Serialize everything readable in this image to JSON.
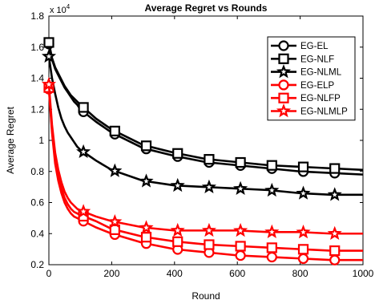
{
  "chart_data": {
    "type": "line",
    "title": "Average Regret vs Rounds",
    "xlabel": "Round",
    "ylabel": "Average Regret",
    "y_multiplier_label": "x 10",
    "y_multiplier_exp": "4",
    "xlim": [
      0,
      1000
    ],
    "ylim": [
      0.2,
      1.8
    ],
    "xticks": [
      0,
      200,
      400,
      600,
      800,
      1000
    ],
    "yticks": [
      0.2,
      0.4,
      0.6,
      0.8,
      1,
      1.2,
      1.4,
      1.6,
      1.8
    ],
    "xtick_labels": [
      "0",
      "200",
      "400",
      "600",
      "800",
      "1000"
    ],
    "ytick_labels": [
      "0.2",
      "0.4",
      "0.6",
      "0.8",
      "1",
      "1.2",
      "1.4",
      "1.6",
      "1.8"
    ],
    "grid": false,
    "legend_position": "top-right",
    "x": [
      0,
      10,
      20,
      30,
      40,
      50,
      60,
      70,
      80,
      90,
      100,
      150,
      200,
      300,
      400,
      500,
      600,
      700,
      800,
      900,
      1000
    ],
    "marker_x": [
      0,
      110,
      210,
      310,
      410,
      510,
      610,
      710,
      810,
      910
    ],
    "series": [
      {
        "name": "EG-EL",
        "color": "#000000",
        "marker": "circle",
        "values": [
          1.62,
          1.52,
          1.46,
          1.42,
          1.38,
          1.34,
          1.31,
          1.28,
          1.25,
          1.23,
          1.2,
          1.12,
          1.05,
          0.95,
          0.9,
          0.86,
          0.84,
          0.82,
          0.8,
          0.79,
          0.78
        ]
      },
      {
        "name": "EG-NLF",
        "color": "#000000",
        "marker": "square",
        "values": [
          1.63,
          1.53,
          1.47,
          1.43,
          1.39,
          1.35,
          1.32,
          1.29,
          1.27,
          1.25,
          1.23,
          1.14,
          1.07,
          0.97,
          0.92,
          0.88,
          0.86,
          0.84,
          0.83,
          0.82,
          0.81
        ]
      },
      {
        "name": "EG-NLML",
        "color": "#000000",
        "marker": "star",
        "values": [
          1.54,
          1.4,
          1.3,
          1.21,
          1.14,
          1.09,
          1.05,
          1.02,
          0.99,
          0.96,
          0.94,
          0.87,
          0.81,
          0.74,
          0.71,
          0.7,
          0.69,
          0.68,
          0.66,
          0.65,
          0.65
        ]
      },
      {
        "name": "EG-ELP",
        "color": "#ff0000",
        "marker": "circle",
        "values": [
          1.33,
          1.05,
          0.85,
          0.74,
          0.66,
          0.6,
          0.56,
          0.53,
          0.51,
          0.5,
          0.49,
          0.44,
          0.4,
          0.34,
          0.3,
          0.28,
          0.26,
          0.25,
          0.24,
          0.23,
          0.23
        ]
      },
      {
        "name": "EG-NLFP",
        "color": "#ff0000",
        "marker": "square",
        "values": [
          1.34,
          1.07,
          0.88,
          0.77,
          0.69,
          0.63,
          0.59,
          0.56,
          0.54,
          0.53,
          0.52,
          0.48,
          0.43,
          0.38,
          0.35,
          0.33,
          0.32,
          0.31,
          0.3,
          0.29,
          0.29
        ]
      },
      {
        "name": "EG-NLMLP",
        "color": "#ff0000",
        "marker": "star",
        "values": [
          1.36,
          1.1,
          0.92,
          0.81,
          0.73,
          0.67,
          0.63,
          0.6,
          0.58,
          0.56,
          0.55,
          0.51,
          0.48,
          0.44,
          0.42,
          0.42,
          0.42,
          0.41,
          0.41,
          0.4,
          0.4
        ]
      }
    ]
  }
}
